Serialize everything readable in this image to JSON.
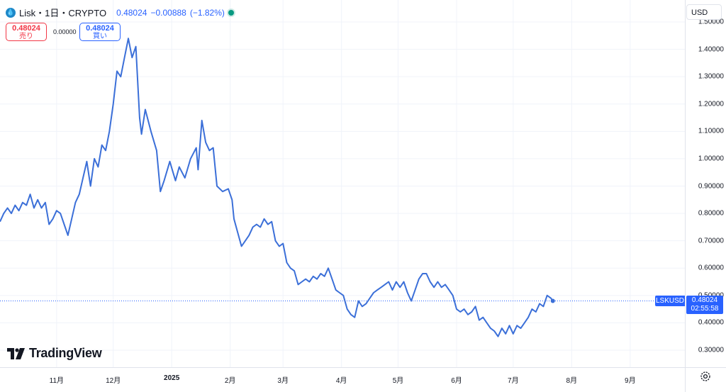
{
  "header": {
    "symbol_title": "Lisk・1日・CRYPTO",
    "symbol_logo_icon": "water-drop-icon",
    "last_price": "0.48024",
    "change": "−0.00888",
    "change_pct": "(−1.82%)",
    "status_icon": "market-open-dot-icon",
    "status_color": "#089981"
  },
  "trade": {
    "sell_price": "0.48024",
    "sell_label": "売り",
    "spread": "0.00000",
    "buy_price": "0.48024",
    "buy_label": "買い",
    "sell_color": "#f23645",
    "buy_color": "#2962ff"
  },
  "currency": "USD",
  "last_price_tag": {
    "symbol": "LSKUSD",
    "price": "0.48024",
    "countdown": "02:55:58",
    "color": "#2962ff"
  },
  "logo_text": "TradingView",
  "settings_icon": "gear-icon",
  "chart_data": {
    "type": "line",
    "line_color": "#3b6fd8",
    "grid": true,
    "ylim": [
      0.25,
      1.5
    ],
    "y_ticks": [
      {
        "value": 1.5,
        "label": "1.50000"
      },
      {
        "value": 1.4,
        "label": "1.40000"
      },
      {
        "value": 1.3,
        "label": "1.30000"
      },
      {
        "value": 1.2,
        "label": "1.20000"
      },
      {
        "value": 1.1,
        "label": "1.10000"
      },
      {
        "value": 1.0,
        "label": "1.00000"
      },
      {
        "value": 0.9,
        "label": "0.90000"
      },
      {
        "value": 0.8,
        "label": "0.80000"
      },
      {
        "value": 0.7,
        "label": "0.70000"
      },
      {
        "value": 0.6,
        "label": "0.60000"
      },
      {
        "value": 0.5,
        "label": "0.50000"
      },
      {
        "value": 0.4,
        "label": "0.40000"
      },
      {
        "value": 0.3,
        "label": "0.30000"
      }
    ],
    "xlim": [
      "2024-10-02",
      "2025-09-30"
    ],
    "x_ticks": [
      {
        "date": "2024-11-01",
        "label": "11月",
        "bold": false
      },
      {
        "date": "2024-12-01",
        "label": "12月",
        "bold": false
      },
      {
        "date": "2025-01-01",
        "label": "2025",
        "bold": true
      },
      {
        "date": "2025-02-01",
        "label": "2月",
        "bold": false
      },
      {
        "date": "2025-03-01",
        "label": "3月",
        "bold": false
      },
      {
        "date": "2025-04-01",
        "label": "4月",
        "bold": false
      },
      {
        "date": "2025-05-01",
        "label": "5月",
        "bold": false
      },
      {
        "date": "2025-06-01",
        "label": "6月",
        "bold": false
      },
      {
        "date": "2025-07-01",
        "label": "7月",
        "bold": false
      },
      {
        "date": "2025-08-01",
        "label": "8月",
        "bold": false
      },
      {
        "date": "2025-09-01",
        "label": "9月",
        "bold": false
      }
    ],
    "series": [
      {
        "points": [
          [
            "2024-10-02",
            0.77
          ],
          [
            "2024-10-04",
            0.8
          ],
          [
            "2024-10-06",
            0.82
          ],
          [
            "2024-10-08",
            0.8
          ],
          [
            "2024-10-10",
            0.83
          ],
          [
            "2024-10-12",
            0.81
          ],
          [
            "2024-10-14",
            0.84
          ],
          [
            "2024-10-16",
            0.83
          ],
          [
            "2024-10-18",
            0.87
          ],
          [
            "2024-10-20",
            0.82
          ],
          [
            "2024-10-22",
            0.85
          ],
          [
            "2024-10-24",
            0.82
          ],
          [
            "2024-10-26",
            0.84
          ],
          [
            "2024-10-28",
            0.76
          ],
          [
            "2024-10-30",
            0.78
          ],
          [
            "2024-11-01",
            0.81
          ],
          [
            "2024-11-03",
            0.8
          ],
          [
            "2024-11-05",
            0.76
          ],
          [
            "2024-11-07",
            0.72
          ],
          [
            "2024-11-09",
            0.78
          ],
          [
            "2024-11-11",
            0.84
          ],
          [
            "2024-11-13",
            0.87
          ],
          [
            "2024-11-15",
            0.93
          ],
          [
            "2024-11-17",
            0.99
          ],
          [
            "2024-11-19",
            0.9
          ],
          [
            "2024-11-21",
            1.0
          ],
          [
            "2024-11-23",
            0.97
          ],
          [
            "2024-11-25",
            1.05
          ],
          [
            "2024-11-27",
            1.03
          ],
          [
            "2024-11-29",
            1.1
          ],
          [
            "2024-12-01",
            1.2
          ],
          [
            "2024-12-03",
            1.32
          ],
          [
            "2024-12-05",
            1.3
          ],
          [
            "2024-12-07",
            1.37
          ],
          [
            "2024-12-09",
            1.44
          ],
          [
            "2024-12-11",
            1.37
          ],
          [
            "2024-12-13",
            1.41
          ],
          [
            "2024-12-15",
            1.15
          ],
          [
            "2024-12-16",
            1.09
          ],
          [
            "2024-12-18",
            1.18
          ],
          [
            "2024-12-21",
            1.1
          ],
          [
            "2024-12-24",
            1.03
          ],
          [
            "2024-12-26",
            0.88
          ],
          [
            "2024-12-28",
            0.92
          ],
          [
            "2024-12-31",
            0.99
          ],
          [
            "2025-01-03",
            0.92
          ],
          [
            "2025-01-05",
            0.97
          ],
          [
            "2025-01-08",
            0.93
          ],
          [
            "2025-01-11",
            1.0
          ],
          [
            "2025-01-14",
            1.04
          ],
          [
            "2025-01-15",
            0.96
          ],
          [
            "2025-01-17",
            1.14
          ],
          [
            "2025-01-19",
            1.06
          ],
          [
            "2025-01-21",
            1.03
          ],
          [
            "2025-01-23",
            1.04
          ],
          [
            "2025-01-25",
            0.9
          ],
          [
            "2025-01-28",
            0.88
          ],
          [
            "2025-01-31",
            0.89
          ],
          [
            "2025-02-02",
            0.85
          ],
          [
            "2025-02-03",
            0.78
          ],
          [
            "2025-02-05",
            0.73
          ],
          [
            "2025-02-07",
            0.68
          ],
          [
            "2025-02-09",
            0.7
          ],
          [
            "2025-02-11",
            0.72
          ],
          [
            "2025-02-13",
            0.75
          ],
          [
            "2025-02-15",
            0.76
          ],
          [
            "2025-02-17",
            0.75
          ],
          [
            "2025-02-19",
            0.78
          ],
          [
            "2025-02-21",
            0.76
          ],
          [
            "2025-02-23",
            0.77
          ],
          [
            "2025-02-25",
            0.7
          ],
          [
            "2025-02-27",
            0.68
          ],
          [
            "2025-03-01",
            0.69
          ],
          [
            "2025-03-03",
            0.62
          ],
          [
            "2025-03-05",
            0.6
          ],
          [
            "2025-03-07",
            0.59
          ],
          [
            "2025-03-09",
            0.54
          ],
          [
            "2025-03-11",
            0.55
          ],
          [
            "2025-03-13",
            0.56
          ],
          [
            "2025-03-15",
            0.55
          ],
          [
            "2025-03-17",
            0.57
          ],
          [
            "2025-03-19",
            0.56
          ],
          [
            "2025-03-21",
            0.58
          ],
          [
            "2025-03-23",
            0.57
          ],
          [
            "2025-03-25",
            0.6
          ],
          [
            "2025-03-27",
            0.56
          ],
          [
            "2025-03-29",
            0.52
          ],
          [
            "2025-03-31",
            0.51
          ],
          [
            "2025-04-02",
            0.5
          ],
          [
            "2025-04-04",
            0.45
          ],
          [
            "2025-04-06",
            0.43
          ],
          [
            "2025-04-08",
            0.42
          ],
          [
            "2025-04-10",
            0.48
          ],
          [
            "2025-04-12",
            0.46
          ],
          [
            "2025-04-14",
            0.47
          ],
          [
            "2025-04-16",
            0.49
          ],
          [
            "2025-04-18",
            0.51
          ],
          [
            "2025-04-20",
            0.52
          ],
          [
            "2025-04-22",
            0.53
          ],
          [
            "2025-04-24",
            0.54
          ],
          [
            "2025-04-26",
            0.55
          ],
          [
            "2025-04-28",
            0.52
          ],
          [
            "2025-04-30",
            0.55
          ],
          [
            "2025-05-02",
            0.53
          ],
          [
            "2025-05-04",
            0.55
          ],
          [
            "2025-05-06",
            0.51
          ],
          [
            "2025-05-08",
            0.48
          ],
          [
            "2025-05-10",
            0.52
          ],
          [
            "2025-05-12",
            0.56
          ],
          [
            "2025-05-14",
            0.58
          ],
          [
            "2025-05-16",
            0.58
          ],
          [
            "2025-05-18",
            0.55
          ],
          [
            "2025-05-20",
            0.53
          ],
          [
            "2025-05-22",
            0.55
          ],
          [
            "2025-05-24",
            0.53
          ],
          [
            "2025-05-26",
            0.54
          ],
          [
            "2025-05-28",
            0.52
          ],
          [
            "2025-05-30",
            0.5
          ],
          [
            "2025-06-01",
            0.45
          ],
          [
            "2025-06-03",
            0.44
          ],
          [
            "2025-06-05",
            0.45
          ],
          [
            "2025-06-07",
            0.43
          ],
          [
            "2025-06-09",
            0.44
          ],
          [
            "2025-06-11",
            0.46
          ],
          [
            "2025-06-13",
            0.41
          ],
          [
            "2025-06-15",
            0.42
          ],
          [
            "2025-06-17",
            0.4
          ],
          [
            "2025-06-19",
            0.38
          ],
          [
            "2025-06-21",
            0.37
          ],
          [
            "2025-06-23",
            0.35
          ],
          [
            "2025-06-25",
            0.38
          ],
          [
            "2025-06-27",
            0.36
          ],
          [
            "2025-06-29",
            0.39
          ],
          [
            "2025-07-01",
            0.36
          ],
          [
            "2025-07-03",
            0.39
          ],
          [
            "2025-07-05",
            0.38
          ],
          [
            "2025-07-07",
            0.4
          ],
          [
            "2025-07-09",
            0.42
          ],
          [
            "2025-07-11",
            0.45
          ],
          [
            "2025-07-13",
            0.44
          ],
          [
            "2025-07-15",
            0.47
          ],
          [
            "2025-07-17",
            0.46
          ],
          [
            "2025-07-19",
            0.5
          ],
          [
            "2025-07-21",
            0.49
          ],
          [
            "2025-07-22",
            0.48
          ]
        ]
      }
    ]
  }
}
